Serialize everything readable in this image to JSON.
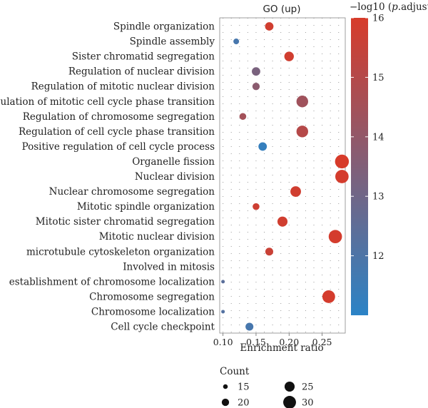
{
  "chart_data": {
    "type": "scatter",
    "title": "GO (up)",
    "xlabel": "Enrichment ratio",
    "xlim": [
      0.095,
      0.285
    ],
    "xticks": [
      "0.10",
      "0.15",
      "0.20",
      "0.25"
    ],
    "xtick_values": [
      0.1,
      0.15,
      0.2,
      0.25
    ],
    "grid": true,
    "color_scale": {
      "title_prefix": "−log10 (",
      "title_italic": "p",
      "title_suffix": ".adjust)",
      "min": 11,
      "max": 16,
      "ticks": [
        12,
        13,
        14,
        15,
        16
      ],
      "low_color": "#2b83c6",
      "high_color": "#d73b2a"
    },
    "size_legend": {
      "title": "Count",
      "entries": [
        {
          "label": "15",
          "value": 15
        },
        {
          "label": "20",
          "value": 20
        },
        {
          "label": "25",
          "value": 25
        },
        {
          "label": "30",
          "value": 30
        }
      ]
    },
    "points": [
      {
        "term": "Spindle organization",
        "x": 0.17,
        "count": 22,
        "logp": 15.8
      },
      {
        "term": "Spindle assembly",
        "x": 0.12,
        "count": 17,
        "logp": 11.8
      },
      {
        "term": "Sister chromatid segregation",
        "x": 0.2,
        "count": 24,
        "logp": 15.8
      },
      {
        "term": "Regulation of nuclear division",
        "x": 0.15,
        "count": 22,
        "logp": 13.3
      },
      {
        "term": "Regulation of mitotic nuclear division",
        "x": 0.15,
        "count": 20,
        "logp": 13.8
      },
      {
        "term": "Regulation of mitotic cell cycle phase transition",
        "x": 0.22,
        "count": 28,
        "logp": 14.4
      },
      {
        "term": "Regulation of chromosome segregation",
        "x": 0.13,
        "count": 19,
        "logp": 14.5
      },
      {
        "term": "Regulation of cell cycle phase transition",
        "x": 0.22,
        "count": 28,
        "logp": 15.0
      },
      {
        "term": "Positive regulation of cell cycle process",
        "x": 0.16,
        "count": 22,
        "logp": 11.3
      },
      {
        "term": "Organelle fission",
        "x": 0.28,
        "count": 32,
        "logp": 16.0
      },
      {
        "term": "Nuclear division",
        "x": 0.28,
        "count": 31,
        "logp": 15.9
      },
      {
        "term": "Nuclear chromosome segregation",
        "x": 0.21,
        "count": 26,
        "logp": 15.8
      },
      {
        "term": "Mitotic spindle organization",
        "x": 0.15,
        "count": 19,
        "logp": 15.7
      },
      {
        "term": "Mitotic sister chromatid segregation",
        "x": 0.19,
        "count": 25,
        "logp": 15.8
      },
      {
        "term": "Mitotic nuclear division",
        "x": 0.27,
        "count": 31,
        "logp": 15.9
      },
      {
        "term": "microtubule cytoskeleton organization",
        "x": 0.17,
        "count": 21,
        "logp": 15.6
      },
      {
        "term": "Involved in mitosis",
        "x": null,
        "count": null,
        "logp": null
      },
      {
        "term": "establishment of chromosome localization",
        "x": 0.1,
        "count": 13,
        "logp": 12.4
      },
      {
        "term": "Chromosome segregation",
        "x": 0.26,
        "count": 30,
        "logp": 15.9
      },
      {
        "term": "Chromosome localization",
        "x": 0.1,
        "count": 13,
        "logp": 12.2
      },
      {
        "term": "Cell cycle checkpoint",
        "x": 0.14,
        "count": 21,
        "logp": 11.8
      }
    ]
  }
}
